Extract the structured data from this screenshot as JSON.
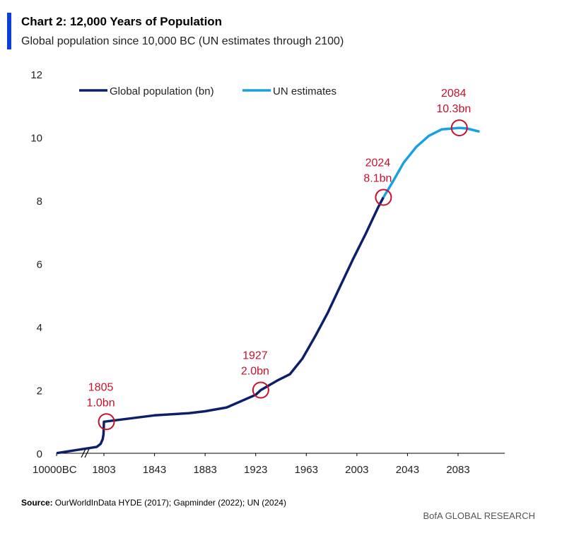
{
  "chart_data": {
    "type": "line",
    "title": "Chart 2: 12,000 Years of Population",
    "subtitle": "Global population since 10,000 BC (UN estimates through 2100)",
    "source_label": "Source:",
    "source": "OurWorldInData HYDE (2017); Gapminder (2022); UN (2024)",
    "brand": "BofA GLOBAL RESEARCH",
    "xlim": [
      -10000,
      2120
    ],
    "xticks": [
      {
        "value": -10000,
        "label": "10000BC"
      },
      1803,
      1843,
      1883,
      1923,
      1963,
      2003,
      2043,
      2083
    ],
    "ylim": [
      0,
      12
    ],
    "yticks": [
      0,
      2,
      4,
      6,
      8,
      10,
      12
    ],
    "grid": false,
    "series": [
      {
        "name": "Global population (bn)",
        "color": "#0d1f6b",
        "x": [
          -10000,
          1,
          1000,
          1500,
          1700,
          1750,
          1803,
          1843,
          1870,
          1883,
          1900,
          1923,
          1927,
          1940,
          1950,
          1960,
          1970,
          1980,
          1990,
          2000,
          2010,
          2020,
          2024
        ],
        "values": [
          0.004,
          0.2,
          0.3,
          0.45,
          0.6,
          0.75,
          1.0,
          1.2,
          1.27,
          1.33,
          1.45,
          1.85,
          2.0,
          2.3,
          2.5,
          3.0,
          3.7,
          4.45,
          5.3,
          6.15,
          6.95,
          7.8,
          8.1
        ]
      },
      {
        "name": "UN estimates",
        "color": "#1aa0e0",
        "x": [
          2024,
          2030,
          2040,
          2050,
          2060,
          2070,
          2084,
          2090,
          2100
        ],
        "values": [
          8.1,
          8.5,
          9.2,
          9.7,
          10.05,
          10.25,
          10.3,
          10.28,
          10.18
        ]
      }
    ],
    "annotations": [
      {
        "x": 1805,
        "y": 1.0,
        "label": [
          "1805",
          "1.0bn"
        ]
      },
      {
        "x": 1927,
        "y": 2.0,
        "label": [
          "1927",
          "2.0bn"
        ]
      },
      {
        "x": 2024,
        "y": 8.1,
        "label": [
          "2024",
          "8.1bn"
        ]
      },
      {
        "x": 2084,
        "y": 10.3,
        "label": [
          "2084",
          "10.3bn"
        ]
      }
    ],
    "annotation_color": "#c8102e"
  }
}
